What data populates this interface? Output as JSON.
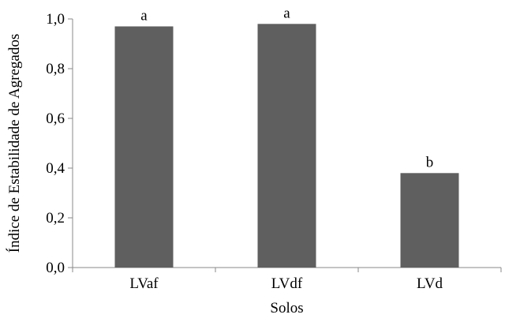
{
  "chart_data": {
    "type": "bar",
    "title": "",
    "xlabel": "Solos",
    "ylabel": "Índice de Estabilidade de Agregados",
    "categories": [
      "LVaf",
      "LVdf",
      "LVd"
    ],
    "values": [
      0.97,
      0.98,
      0.38
    ],
    "bar_labels": [
      "a",
      "a",
      "b"
    ],
    "ylim": [
      0,
      1.0
    ],
    "yticks": [
      0.0,
      0.2,
      0.4,
      0.6,
      0.8,
      1.0
    ],
    "ytick_labels": [
      "0,0",
      "0,2",
      "0,4",
      "0,6",
      "0,8",
      "1,0"
    ],
    "grid": false,
    "legend": "none",
    "bar_color": "#5f5f5f"
  }
}
